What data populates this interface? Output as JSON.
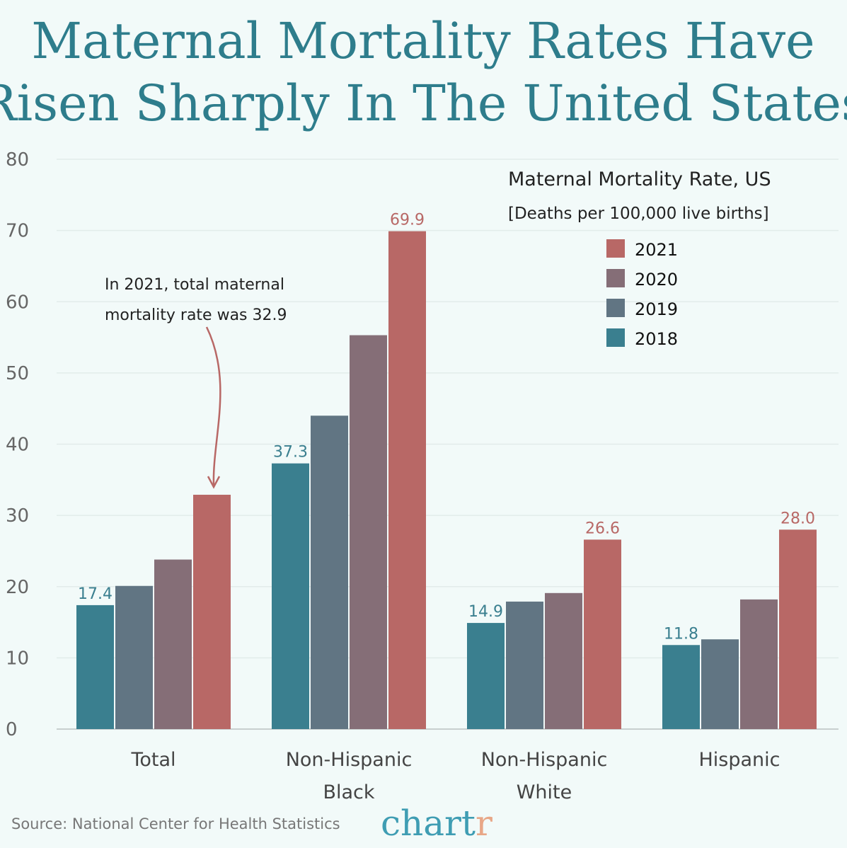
{
  "title_lines": [
    "Maternal Mortality Rates Have",
    "Risen Sharply In The United States"
  ],
  "source": "Source: National Center for Health Statistics",
  "logo": {
    "text_main": "chart",
    "text_end": "r",
    "colors": {
      "main": "#3f9db3",
      "end": "#e8a787"
    }
  },
  "annotation": {
    "line1": "In 2021, total maternal",
    "line2": "mortality rate was 32.9"
  },
  "chart_data": {
    "type": "bar",
    "legend_title": "Maternal Mortality Rate, US",
    "legend_subtitle": "[Deaths per 100,000 live births]",
    "legend_placement": "top-right",
    "categories": [
      [
        "Total"
      ],
      [
        "Non-Hispanic",
        "Black"
      ],
      [
        "Non-Hispanic",
        "White"
      ],
      [
        "Hispanic"
      ]
    ],
    "series": [
      {
        "name": "2018",
        "color": "#3a7f8f",
        "values": [
          17.4,
          37.3,
          14.9,
          11.8
        ],
        "labels": [
          "17.4",
          "37.3",
          "14.9",
          "11.8"
        ]
      },
      {
        "name": "2019",
        "color": "#617583",
        "values": [
          20.1,
          44.0,
          17.9,
          12.6
        ],
        "labels": [
          null,
          null,
          null,
          null
        ]
      },
      {
        "name": "2020",
        "color": "#856e77",
        "values": [
          23.8,
          55.3,
          19.1,
          18.2
        ],
        "labels": [
          null,
          null,
          null,
          null
        ]
      },
      {
        "name": "2021",
        "color": "#b86866",
        "values": [
          32.9,
          69.9,
          26.6,
          28.0
        ],
        "labels": [
          null,
          "69.9",
          "26.6",
          "28.0"
        ]
      }
    ],
    "ylim": [
      0,
      80
    ],
    "yticks": [
      0,
      10,
      20,
      30,
      40,
      50,
      60,
      70,
      80
    ],
    "grid": true
  }
}
